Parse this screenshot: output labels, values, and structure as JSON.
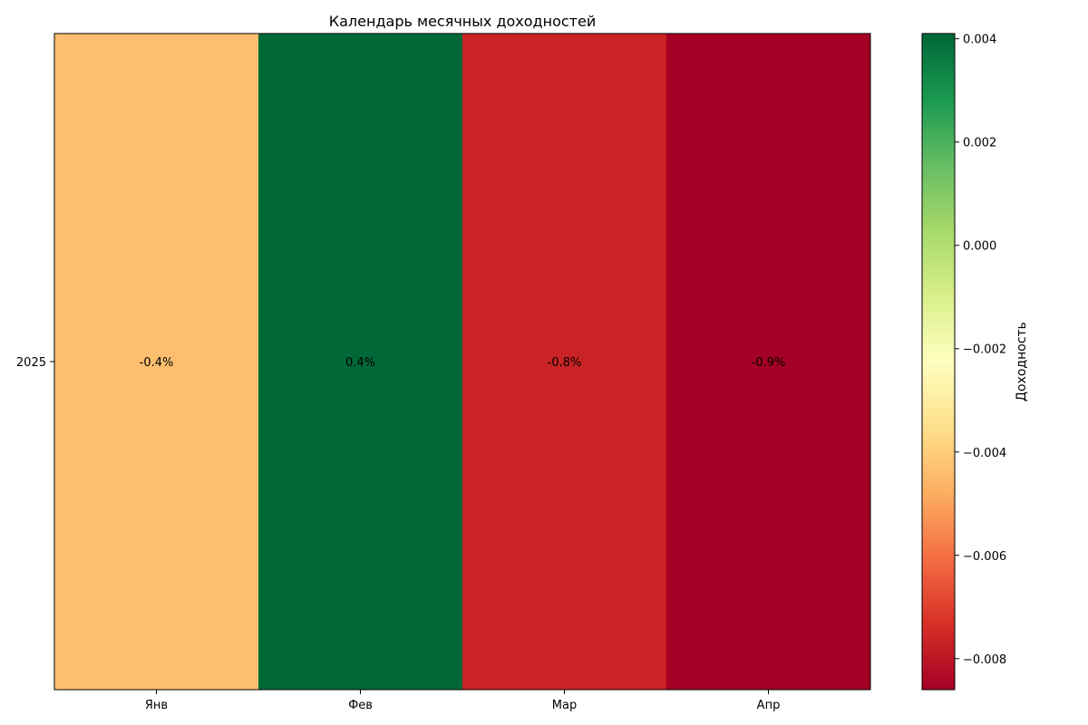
{
  "chart_data": {
    "type": "heatmap",
    "title": "Календарь месячных доходностей",
    "x_categories": [
      "Янв",
      "Фев",
      "Мар",
      "Апр"
    ],
    "y_categories": [
      "2025"
    ],
    "values": [
      [
        -0.004,
        0.004,
        -0.008,
        -0.009
      ]
    ],
    "cell_labels": [
      [
        "-0.4%",
        "0.4%",
        "-0.8%",
        "-0.9%"
      ]
    ],
    "colorscale": "RdYlGn",
    "colorbar": {
      "label": "Доходность",
      "range": [
        -0.0086,
        0.0041
      ],
      "ticks": [
        0.004,
        0.002,
        0.0,
        -0.002,
        -0.004,
        -0.006,
        -0.008
      ],
      "tick_labels": [
        "0.004",
        "0.002",
        "0.000",
        "−0.002",
        "−0.004",
        "−0.006",
        "−0.008"
      ]
    },
    "cell_colors": [
      "#fdbf6f",
      "#006837",
      "#c92325",
      "#a50026"
    ],
    "grid": false
  }
}
